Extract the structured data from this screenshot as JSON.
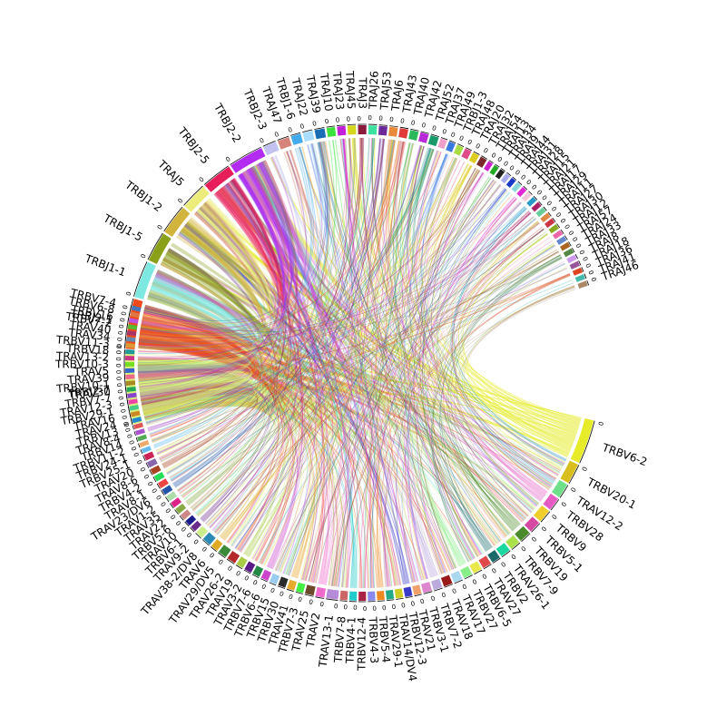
{
  "chart_data": {
    "type": "chord",
    "title": "",
    "tick_label": "0",
    "upper_segments": [
      {
        "name": "TRBJ2-7",
        "size": 44,
        "color": "#d8f07e"
      },
      {
        "name": "TRBJ2-1",
        "size": 30,
        "color": "#f04a1a"
      },
      {
        "name": "TRBJ1-1",
        "size": 22,
        "color": "#7de8e0"
      },
      {
        "name": "TRBJ1-5",
        "size": 18,
        "color": "#8aa019"
      },
      {
        "name": "TRBJ1-2",
        "size": 18,
        "color": "#d2b33b"
      },
      {
        "name": "TRAJ5",
        "size": 16,
        "color": "#ecec7a"
      },
      {
        "name": "TRBJ2-5",
        "size": 18,
        "color": "#e81e5a"
      },
      {
        "name": "TRBJ2-2",
        "size": 21,
        "color": "#b32af0"
      },
      {
        "name": "TRBJ2-3",
        "size": 8,
        "color": "#c2c2f0"
      },
      {
        "name": "TRAJ47",
        "size": 7,
        "color": "#d6847a"
      },
      {
        "name": "TRBJ1-6",
        "size": 6,
        "color": "#44aaee"
      },
      {
        "name": "TRAJ22",
        "size": 6,
        "color": "#aaddff"
      },
      {
        "name": "TRAJ39",
        "size": 6,
        "color": "#1a6db4"
      },
      {
        "name": "TRAJ10",
        "size": 5,
        "color": "#3ee23e"
      },
      {
        "name": "TRAJ23",
        "size": 5,
        "color": "#c31ed8"
      },
      {
        "name": "TRAJ45",
        "size": 5,
        "color": "#d6d61e"
      },
      {
        "name": "TRAJ3",
        "size": 5,
        "color": "#8a1a3c"
      },
      {
        "name": "TRAJ26",
        "size": 5,
        "color": "#3ce2a0"
      },
      {
        "name": "TRAJ53",
        "size": 5,
        "color": "#6a2a9a"
      },
      {
        "name": "TRAJ6",
        "size": 5,
        "color": "#e88a3a"
      },
      {
        "name": "TRAJ43",
        "size": 5,
        "color": "#e03a3a"
      },
      {
        "name": "TRAJ40",
        "size": 5,
        "color": "#2ab85a"
      },
      {
        "name": "TRAJ42",
        "size": 5,
        "color": "#b82ad8"
      },
      {
        "name": "TRAJ52",
        "size": 5,
        "color": "#1a9a6a"
      },
      {
        "name": "TRAJ37",
        "size": 4,
        "color": "#f0a0c8"
      },
      {
        "name": "TRAJ49",
        "size": 4,
        "color": "#3a7ae0"
      },
      {
        "name": "TRBJ1-3",
        "size": 4,
        "color": "#aadd44"
      },
      {
        "name": "TRAJ48",
        "size": 4,
        "color": "#e04a8a"
      },
      {
        "name": "TRAJ20",
        "size": 4,
        "color": "#ddcc22"
      },
      {
        "name": "TRAJ32",
        "size": 4,
        "color": "#7a2a2a"
      },
      {
        "name": "TRAJ54",
        "size": 3,
        "color": "#cc22cc"
      },
      {
        "name": "TRAJ13",
        "size": 3,
        "color": "#22aa22"
      },
      {
        "name": "TRAJ34",
        "size": 3,
        "color": "#222222"
      },
      {
        "name": "TRAJ9",
        "size": 3,
        "color": "#aaaaee"
      },
      {
        "name": "TRAJ44",
        "size": 3,
        "color": "#1a3ac8"
      },
      {
        "name": "TRAJ31",
        "size": 3,
        "color": "#8ad8d8"
      },
      {
        "name": "TRAJ28",
        "size": 3,
        "color": "#e02ad8"
      },
      {
        "name": "TRAJ15",
        "size": 3,
        "color": "#f0c8d8"
      },
      {
        "name": "TRAJ21",
        "size": 3,
        "color": "#2a9ac8"
      },
      {
        "name": "TRAJ17",
        "size": 3,
        "color": "#aa2266"
      },
      {
        "name": "TRAJ29",
        "size": 3,
        "color": "#66cc99"
      },
      {
        "name": "TRAJ11",
        "size": 3,
        "color": "#dd8844"
      },
      {
        "name": "TRAJ27",
        "size": 3,
        "color": "#cc3344"
      },
      {
        "name": "TRAJ30",
        "size": 3,
        "color": "#88aa22"
      },
      {
        "name": "TRAJ12",
        "size": 3,
        "color": "#ee66aa"
      },
      {
        "name": "TRAJ57",
        "size": 3,
        "color": "#6688cc"
      },
      {
        "name": "TRAJ24",
        "size": 3,
        "color": "#aa6622"
      },
      {
        "name": "TRAJ33",
        "size": 3,
        "color": "#558844"
      },
      {
        "name": "TRAJ8",
        "size": 3,
        "color": "#cc99ee"
      },
      {
        "name": "TRAJ18",
        "size": 3,
        "color": "#995599"
      },
      {
        "name": "TRAJ36",
        "size": 3,
        "color": "#dd4422"
      },
      {
        "name": "TRAJ41",
        "size": 3,
        "color": "#44bbaa"
      },
      {
        "name": "TRAJ46",
        "size": 3,
        "color": "#aa8866"
      }
    ],
    "lower_segments": [
      {
        "name": "TRBV6-2",
        "size": 30,
        "color": "#e6ec2a"
      },
      {
        "name": "TRBV20-1",
        "size": 14,
        "color": "#d9bf1e"
      },
      {
        "name": "TRAV12-2",
        "size": 10,
        "color": "#6ee08a"
      },
      {
        "name": "TRBV28",
        "size": 9,
        "color": "#e65cc4"
      },
      {
        "name": "TRBV9",
        "size": 9,
        "color": "#f0cf2a"
      },
      {
        "name": "TRBV5-1",
        "size": 8,
        "color": "#d64aa4"
      },
      {
        "name": "TRBV19",
        "size": 8,
        "color": "#4a8a2a"
      },
      {
        "name": "TRBV7-9",
        "size": 7,
        "color": "#aae04a"
      },
      {
        "name": "TRAV26-1",
        "size": 7,
        "color": "#1ad8a0"
      },
      {
        "name": "TRBV2",
        "size": 6,
        "color": "#1a6a6a"
      },
      {
        "name": "TRAV27",
        "size": 6,
        "color": "#e04a4a"
      },
      {
        "name": "TRBV6-5",
        "size": 6,
        "color": "#e8e84a"
      },
      {
        "name": "TRBV27",
        "size": 6,
        "color": "#88ee88"
      },
      {
        "name": "TRAV17",
        "size": 6,
        "color": "#aad8f0"
      },
      {
        "name": "TRAV18",
        "size": 6,
        "color": "#9a1a1a"
      },
      {
        "name": "TRBV7-2",
        "size": 6,
        "color": "#bbaadd"
      },
      {
        "name": "TRBV3-1",
        "size": 6,
        "color": "#dd88cc"
      },
      {
        "name": "TRAV21",
        "size": 5,
        "color": "#f0a06a"
      },
      {
        "name": "TRBV12-3",
        "size": 5,
        "color": "#3a3ac8"
      },
      {
        "name": "TRAV14/DV4",
        "size": 5,
        "color": "#cccc22"
      },
      {
        "name": "TRAV29-1",
        "size": 5,
        "color": "#22aa88"
      },
      {
        "name": "TRBV5-4",
        "size": 5,
        "color": "#ee8822"
      },
      {
        "name": "TRBV4-3",
        "size": 5,
        "color": "#8888ee"
      },
      {
        "name": "TRBV12-4",
        "size": 5,
        "color": "#aa2244"
      },
      {
        "name": "TRBV4-1",
        "size": 5,
        "color": "#22cccc"
      },
      {
        "name": "TRBV7-8",
        "size": 5,
        "color": "#cc6666"
      },
      {
        "name": "TRAV13-1",
        "size": 8,
        "color": "#b58ad8"
      },
      {
        "name": "TRAV2",
        "size": 6,
        "color": "#f06acc"
      },
      {
        "name": "TRAV25",
        "size": 6,
        "color": "#6a4a2a"
      },
      {
        "name": "TRBV7-3",
        "size": 5,
        "color": "#44ee44"
      },
      {
        "name": "TRAV41",
        "size": 5,
        "color": "#e8aa2a"
      },
      {
        "name": "TRBV30",
        "size": 5,
        "color": "#2a2a2a"
      },
      {
        "name": "TRBV15",
        "size": 5,
        "color": "#99ccee"
      },
      {
        "name": "TRBV6-6",
        "size": 5,
        "color": "#cc44cc"
      },
      {
        "name": "TRBV7-6",
        "size": 5,
        "color": "#228844"
      },
      {
        "name": "TRAV3-2",
        "size": 5,
        "color": "#5a1a8a"
      },
      {
        "name": "TRAV19",
        "size": 5,
        "color": "#aacc44"
      },
      {
        "name": "TRAV26-2",
        "size": 6,
        "color": "#b42a2a"
      },
      {
        "name": "TRAV29/DV5",
        "size": 6,
        "color": "#3a8a3a"
      },
      {
        "name": "TRAV6",
        "size": 5,
        "color": "#ddaa22"
      },
      {
        "name": "TRAV38-2/DV8",
        "size": 6,
        "color": "#2a8ab4"
      },
      {
        "name": "TRAV9-2",
        "size": 5,
        "color": "#ccee88"
      },
      {
        "name": "TRBV6-1",
        "size": 4,
        "color": "#6a2a8a"
      },
      {
        "name": "TRAV10",
        "size": 4,
        "color": "#1a1a8a"
      },
      {
        "name": "TRBV5-6",
        "size": 4,
        "color": "#cc8888"
      },
      {
        "name": "TRAV22",
        "size": 4,
        "color": "#88aa44"
      },
      {
        "name": "TRAV35",
        "size": 4,
        "color": "#dd2288"
      },
      {
        "name": "TRAV1-2",
        "size": 4,
        "color": "#aaddaa"
      },
      {
        "name": "TRAV23/DV6",
        "size": 4,
        "color": "#2255aa"
      },
      {
        "name": "TRAV8-1",
        "size": 4,
        "color": "#ee4444"
      },
      {
        "name": "TRBV4-2",
        "size": 4,
        "color": "#22dd55"
      },
      {
        "name": "TRAV8-6",
        "size": 4,
        "color": "#aa4422"
      },
      {
        "name": "TRAV20",
        "size": 4,
        "color": "#8866aa"
      },
      {
        "name": "TRBV25-1",
        "size": 4,
        "color": "#cc2255"
      },
      {
        "name": "TRBV24-1",
        "size": 3,
        "color": "#66bbee"
      },
      {
        "name": "TRBV11-2",
        "size": 3,
        "color": "#eeaa66"
      },
      {
        "name": "TRBV14",
        "size": 3,
        "color": "#55aa55"
      },
      {
        "name": "TRAV8-4",
        "size": 3,
        "color": "#aa55cc"
      },
      {
        "name": "TRBV13",
        "size": 3,
        "color": "#dd5555"
      },
      {
        "name": "TRAV24",
        "size": 3,
        "color": "#2288cc"
      },
      {
        "name": "TRAV16",
        "size": 3,
        "color": "#cc8822"
      },
      {
        "name": "TRBV29-1",
        "size": 3,
        "color": "#44cc88"
      },
      {
        "name": "TRAV12-3",
        "size": 3,
        "color": "#ee44aa"
      },
      {
        "name": "TRBV7-7",
        "size": 3,
        "color": "#8844cc"
      },
      {
        "name": "TRAV30",
        "size": 3,
        "color": "#22aa55"
      },
      {
        "name": "TRBV10-1",
        "size": 3,
        "color": "#aa8822"
      },
      {
        "name": "TRAV39",
        "size": 3,
        "color": "#ee6688"
      },
      {
        "name": "TRAV5",
        "size": 3,
        "color": "#3366cc"
      },
      {
        "name": "TRBV10-3",
        "size": 3,
        "color": "#77dd22"
      },
      {
        "name": "TRAV13-2",
        "size": 3,
        "color": "#cc3388"
      },
      {
        "name": "TRBV18",
        "size": 3,
        "color": "#229999"
      },
      {
        "name": "TRBV11-3",
        "size": 3,
        "color": "#dd9933"
      },
      {
        "name": "TRAV34",
        "size": 3,
        "color": "#6688aa"
      },
      {
        "name": "TRAV40",
        "size": 3,
        "color": "#aa3366"
      },
      {
        "name": "TRBV7-2b",
        "size": 3,
        "color": "#55bb33"
      },
      {
        "name": "TRBV16",
        "size": 3,
        "color": "#bb55dd"
      },
      {
        "name": "TRBV6-8",
        "size": 3,
        "color": "#dd7744"
      },
      {
        "name": "TRBV7-4",
        "size": 3,
        "color": "#4477bb"
      }
    ],
    "lower_label_overrides": {
      "TRBV7-2b": "TRBV7-2"
    }
  }
}
